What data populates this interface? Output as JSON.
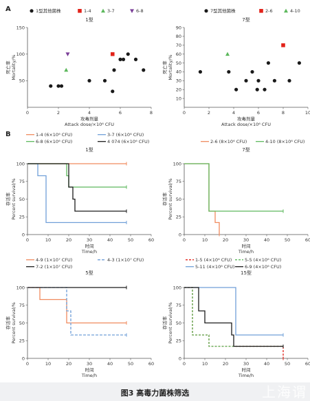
{
  "figure": {
    "caption": "图3 高毒力菌株筛选",
    "watermark": "上海谓",
    "panel_a_label": "A",
    "panel_b_label": "B"
  },
  "colors": {
    "black": "#1a1a1a",
    "red": "#e2231a",
    "green": "#5cb85c",
    "purple": "#7b3f98",
    "orange": "#f08a5d",
    "blue": "#6f9fd8",
    "brown": "#c8641a"
  },
  "chart_data": [
    {
      "type": "scatter",
      "title": "1型",
      "xlabel_cn": "攻毒剂量",
      "xlabel": "Attack dose/×10⁶ CFU",
      "ylabel_cn": "死亡率",
      "ylabel": "Mortality/%",
      "xlim": [
        0,
        8
      ],
      "ylim": [
        0,
        150
      ],
      "xticks": [
        0,
        2,
        4,
        6,
        8
      ],
      "yticks": [
        50,
        100,
        150
      ],
      "legend_position": "top",
      "series": [
        {
          "name": "1型其他菌株",
          "color": "#1a1a1a",
          "marker": "circle",
          "points": [
            [
              1.5,
              40
            ],
            [
              2.0,
              40
            ],
            [
              2.2,
              40
            ],
            [
              4.0,
              50
            ],
            [
              5.0,
              50
            ],
            [
              5.5,
              30
            ],
            [
              5.6,
              70
            ],
            [
              6.0,
              90
            ],
            [
              6.2,
              90
            ],
            [
              6.5,
              100
            ],
            [
              7.0,
              90
            ],
            [
              7.5,
              70
            ]
          ]
        },
        {
          "name": "1-4",
          "color": "#e2231a",
          "marker": "square",
          "points": [
            [
              5.5,
              100
            ]
          ]
        },
        {
          "name": "3-7",
          "color": "#5cb85c",
          "marker": "triangle-up",
          "points": [
            [
              2.5,
              70
            ]
          ]
        },
        {
          "name": "6-8",
          "color": "#7b3f98",
          "marker": "triangle-down",
          "points": [
            [
              2.6,
              100
            ]
          ]
        }
      ]
    },
    {
      "type": "scatter",
      "title": "7型",
      "xlabel_cn": "攻毒剂量",
      "xlabel": "Attack dose/×10⁶ CFU",
      "ylabel_cn": "死亡率",
      "ylabel": "Mortality/%",
      "xlim": [
        0,
        10
      ],
      "ylim": [
        0,
        90
      ],
      "xticks": [
        0,
        2,
        4,
        6,
        8,
        10
      ],
      "yticks": [
        10,
        20,
        30,
        40,
        50,
        60,
        70,
        80,
        90
      ],
      "legend_position": "top",
      "series": [
        {
          "name": "7型其他菌株",
          "color": "#1a1a1a",
          "marker": "circle",
          "points": [
            [
              1.3,
              40
            ],
            [
              3.6,
              40
            ],
            [
              4.2,
              20
            ],
            [
              5.0,
              30
            ],
            [
              5.5,
              40
            ],
            [
              5.9,
              20
            ],
            [
              6.0,
              30
            ],
            [
              6.5,
              20
            ],
            [
              6.8,
              50
            ],
            [
              7.3,
              30
            ],
            [
              8.5,
              30
            ],
            [
              9.3,
              50
            ]
          ]
        },
        {
          "name": "2-6",
          "color": "#e2231a",
          "marker": "square",
          "points": [
            [
              8.0,
              70
            ]
          ]
        },
        {
          "name": "4-10",
          "color": "#5cb85c",
          "marker": "triangle-up",
          "points": [
            [
              3.5,
              60
            ]
          ]
        }
      ]
    },
    {
      "type": "line",
      "title": "1型",
      "xlabel_cn": "时间",
      "xlabel": "Time/h",
      "ylabel_cn": "存活率",
      "ylabel": "Percent survival/%",
      "xlim": [
        0,
        60
      ],
      "ylim": [
        0,
        100
      ],
      "xticks": [
        0,
        10,
        20,
        30,
        40,
        50,
        60
      ],
      "yticks": [
        0,
        25,
        50,
        75,
        100
      ],
      "legend_position": "top",
      "series": [
        {
          "name": "1-4 (6×10⁶ CFU)",
          "color": "#f08a5d",
          "dash": "",
          "steps": [
            [
              0,
              100
            ],
            [
              48,
              100
            ]
          ]
        },
        {
          "name": "3-7 (6×10⁶ CFU)",
          "color": "#6f9fd8",
          "dash": "",
          "steps": [
            [
              0,
              100
            ],
            [
              5,
              83
            ],
            [
              9,
              17
            ],
            [
              48,
              17
            ]
          ]
        },
        {
          "name": "6-8 (6×10⁶ CFU)",
          "color": "#5cb85c",
          "dash": "",
          "steps": [
            [
              0,
              100
            ],
            [
              19,
              83
            ],
            [
              20,
              67
            ],
            [
              48,
              67
            ]
          ]
        },
        {
          "name": "4 074 (6×10⁶ CFU)",
          "color": "#1a1a1a",
          "dash": "",
          "steps": [
            [
              0,
              100
            ],
            [
              20,
              67
            ],
            [
              22,
              50
            ],
            [
              23,
              33
            ],
            [
              48,
              33
            ]
          ]
        }
      ]
    },
    {
      "type": "line",
      "title": "7型",
      "xlabel_cn": "时间",
      "xlabel": "Time/h",
      "ylabel_cn": "存活率",
      "ylabel": "Percent survival/%",
      "xlim": [
        0,
        60
      ],
      "ylim": [
        0,
        100
      ],
      "xticks": [
        0,
        10,
        20,
        30,
        40,
        50,
        60
      ],
      "yticks": [
        0,
        25,
        50,
        75,
        100
      ],
      "legend_position": "top",
      "series": [
        {
          "name": "2-6 (8×10⁶ CFU)",
          "color": "#f08a5d",
          "dash": "",
          "steps": [
            [
              0,
              100
            ],
            [
              12,
              33
            ],
            [
              15,
              17
            ],
            [
              17,
              0
            ]
          ]
        },
        {
          "name": "4-10 (8×10⁶ CFU)",
          "color": "#5cb85c",
          "dash": "",
          "steps": [
            [
              0,
              100
            ],
            [
              12,
              33
            ],
            [
              48,
              33
            ]
          ]
        }
      ]
    },
    {
      "type": "line",
      "title": "5型",
      "xlabel_cn": "时间",
      "xlabel": "Time/h",
      "ylabel_cn": "存活率",
      "ylabel": "Percent survival/%",
      "xlim": [
        0,
        60
      ],
      "ylim": [
        0,
        100
      ],
      "xticks": [
        0,
        10,
        20,
        30,
        40,
        50,
        60
      ],
      "yticks": [
        0,
        25,
        50,
        75,
        100
      ],
      "legend_position": "top",
      "series": [
        {
          "name": "4-9 (1×10⁷ CFU)",
          "color": "#f08a5d",
          "dash": "",
          "steps": [
            [
              0,
              100
            ],
            [
              6,
              83
            ],
            [
              19,
              50
            ],
            [
              48,
              50
            ]
          ]
        },
        {
          "name": "4-3 (1×10⁷ CFU)",
          "color": "#6f9fd8",
          "dash": "4,2",
          "steps": [
            [
              0,
              100
            ],
            [
              19,
              67
            ],
            [
              21,
              33
            ],
            [
              48,
              33
            ]
          ]
        },
        {
          "name": "7-2 (1×10⁷ CFU)",
          "color": "#1a1a1a",
          "dash": "",
          "steps": [
            [
              0,
              100
            ],
            [
              48,
              100
            ]
          ]
        }
      ]
    },
    {
      "type": "line",
      "title": "15型",
      "xlabel_cn": "时间",
      "xlabel": "Time/h",
      "ylabel_cn": "存活率",
      "ylabel": "Percent survival/%",
      "xlim": [
        0,
        60
      ],
      "ylim": [
        0,
        100
      ],
      "xticks": [
        0,
        10,
        20,
        30,
        40,
        50,
        60
      ],
      "yticks": [
        0,
        25,
        50,
        75,
        100
      ],
      "legend_position": "top",
      "series": [
        {
          "name": "1-5 (4×10⁶ CFU)",
          "color": "#e2231a",
          "dash": "3,2",
          "steps": [
            [
              0,
              100
            ],
            [
              4,
              33
            ],
            [
              12,
              17
            ],
            [
              48,
              0
            ]
          ]
        },
        {
          "name": "5-5 (4×10⁶ CFU)",
          "color": "#5cb85c",
          "dash": "3,2",
          "steps": [
            [
              0,
              100
            ],
            [
              4,
              33
            ],
            [
              12,
              17
            ],
            [
              48,
              17
            ]
          ]
        },
        {
          "name": "5-11 (4×10⁶ CFU)",
          "color": "#6f9fd8",
          "dash": "",
          "steps": [
            [
              0,
              100
            ],
            [
              24,
              100
            ],
            [
              25,
              33
            ],
            [
              48,
              33
            ]
          ]
        },
        {
          "name": "6-9 (4×10⁶ CFU)",
          "color": "#1a1a1a",
          "dash": "",
          "steps": [
            [
              0,
              100
            ],
            [
              7,
              67
            ],
            [
              10,
              50
            ],
            [
              23,
              33
            ],
            [
              24,
              17
            ],
            [
              48,
              17
            ]
          ]
        }
      ]
    }
  ]
}
